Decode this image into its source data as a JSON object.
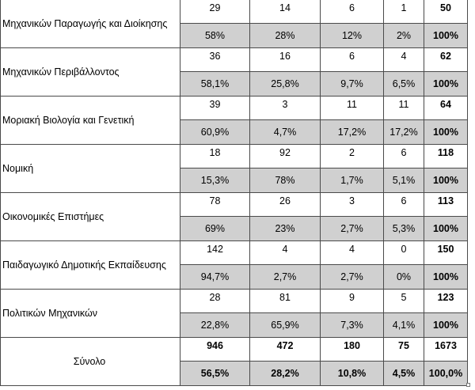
{
  "rows": [
    {
      "label": "Μηχανικών Παραγωγής και Διοίκησης",
      "counts": [
        "29",
        "14",
        "6",
        "1",
        "50"
      ],
      "percents": [
        "58%",
        "28%",
        "12%",
        "2%",
        "100%"
      ]
    },
    {
      "label": "Μηχανικών Περιβάλλοντος",
      "counts": [
        "36",
        "16",
        "6",
        "4",
        "62"
      ],
      "percents": [
        "58,1%",
        "25,8%",
        "9,7%",
        "6,5%",
        "100%"
      ]
    },
    {
      "label": "Μοριακή Βιολογία και Γενετική",
      "counts": [
        "39",
        "3",
        "11",
        "11",
        "64"
      ],
      "percents": [
        "60,9%",
        "4,7%",
        "17,2%",
        "17,2%",
        "100%"
      ]
    },
    {
      "label": "Νομική",
      "counts": [
        "18",
        "92",
        "2",
        "6",
        "118"
      ],
      "percents": [
        "15,3%",
        "78%",
        "1,7%",
        "5,1%",
        "100%"
      ]
    },
    {
      "label": "Οικονομικές Επιστήμες",
      "counts": [
        "78",
        "26",
        "3",
        "6",
        "113"
      ],
      "percents": [
        "69%",
        "23%",
        "2,7%",
        "5,3%",
        "100%"
      ]
    },
    {
      "label": "Παιδαγωγικό Δημοτικής Εκπαίδευσης",
      "counts": [
        "142",
        "4",
        "4",
        "0",
        "150"
      ],
      "percents": [
        "94,7%",
        "2,7%",
        "2,7%",
        "0%",
        "100%"
      ]
    },
    {
      "label": "Πολιτικών Μηχανικών",
      "counts": [
        "28",
        "81",
        "9",
        "5",
        "123"
      ],
      "percents": [
        "22,8%",
        "65,9%",
        "7,3%",
        "4,1%",
        "100%"
      ]
    }
  ],
  "total": {
    "label": "Σύνολο",
    "counts": [
      "946",
      "472",
      "180",
      "75",
      "1673"
    ],
    "percents": [
      "56,5%",
      "28,2%",
      "10,8%",
      "4,5%",
      "100,0%"
    ]
  },
  "colors": {
    "percent_row_bg": "#d0d0d0",
    "border": "#4a4a4a"
  }
}
